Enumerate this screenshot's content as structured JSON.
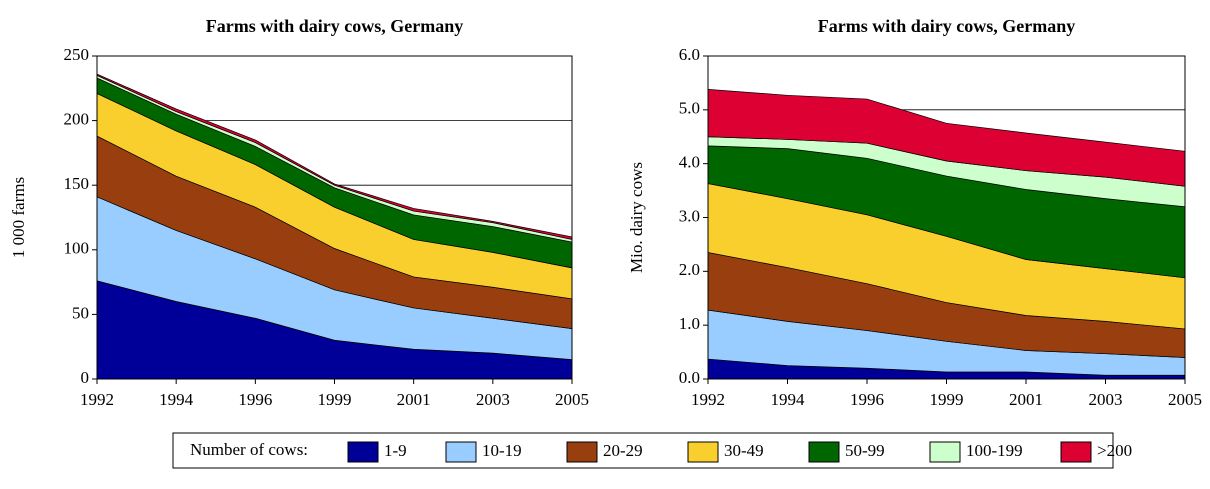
{
  "chart_data": [
    {
      "type": "stacked-area",
      "title": "Farms with dairy cows, Germany",
      "y_label": "1 000 farms",
      "categories": [
        "1992",
        "1994",
        "1996",
        "1999",
        "2001",
        "2003",
        "2005"
      ],
      "ylim": [
        0,
        250
      ],
      "yticks": [
        0,
        50,
        100,
        150,
        200,
        250
      ],
      "grid": true,
      "series": [
        {
          "name": "1-9",
          "color": "#000099",
          "values": [
            76,
            60,
            47,
            30,
            23,
            20,
            15
          ]
        },
        {
          "name": "10-19",
          "color": "#99ccff",
          "values": [
            65,
            55,
            46,
            39,
            32,
            27,
            24
          ]
        },
        {
          "name": "20-29",
          "color": "#993f0f",
          "values": [
            47,
            42,
            40,
            32,
            24,
            24,
            23
          ]
        },
        {
          "name": "30-49",
          "color": "#f9cf2d",
          "values": [
            33,
            35,
            33,
            32,
            29,
            27,
            24
          ]
        },
        {
          "name": "50-99",
          "color": "#006600",
          "values": [
            12,
            13,
            14,
            15,
            19,
            20,
            20
          ]
        },
        {
          "name": "100-199",
          "color": "#ccffcc",
          "values": [
            2,
            2,
            3,
            2,
            3,
            3,
            2
          ]
        },
        {
          "name": ">200",
          "color": "#dd0033",
          "values": [
            1,
            2,
            2,
            1,
            2,
            1,
            2
          ]
        }
      ]
    },
    {
      "type": "stacked-area",
      "title": "Farms with dairy cows, Germany",
      "y_label": "Mio. dairy cows",
      "categories": [
        "1992",
        "1994",
        "1996",
        "1999",
        "2001",
        "2003",
        "2005"
      ],
      "ylim": [
        0,
        6
      ],
      "yticks": [
        {
          "value": 0,
          "label": "0.0"
        },
        {
          "value": 1,
          "label": "1.0"
        },
        {
          "value": 2,
          "label": "2.0"
        },
        {
          "value": 3,
          "label": "3.0"
        },
        {
          "value": 4,
          "label": "4.0"
        },
        {
          "value": 5,
          "label": "5.0"
        },
        {
          "value": 6,
          "label": "6.0"
        }
      ],
      "grid": true,
      "series": [
        {
          "name": "1-9",
          "color": "#000099",
          "values": [
            0.37,
            0.25,
            0.2,
            0.13,
            0.13,
            0.07,
            0.07
          ]
        },
        {
          "name": "10-19",
          "color": "#99ccff",
          "values": [
            0.91,
            0.82,
            0.7,
            0.57,
            0.4,
            0.4,
            0.33
          ]
        },
        {
          "name": "20-29",
          "color": "#993f0f",
          "values": [
            1.07,
            1.0,
            0.87,
            0.72,
            0.65,
            0.6,
            0.53
          ]
        },
        {
          "name": "30-49",
          "color": "#f9cf2d",
          "values": [
            1.28,
            1.28,
            1.28,
            1.23,
            1.04,
            0.98,
            0.95
          ]
        },
        {
          "name": "50-99",
          "color": "#006600",
          "values": [
            0.7,
            0.93,
            1.05,
            1.12,
            1.3,
            1.3,
            1.32
          ]
        },
        {
          "name": "100-199",
          "color": "#ccffcc",
          "values": [
            0.17,
            0.17,
            0.28,
            0.28,
            0.35,
            0.4,
            0.38
          ]
        },
        {
          "name": ">200",
          "color": "#dd0033",
          "values": [
            0.88,
            0.82,
            0.82,
            0.7,
            0.7,
            0.65,
            0.65
          ]
        }
      ]
    }
  ],
  "legend": {
    "title": "Number of cows:"
  }
}
